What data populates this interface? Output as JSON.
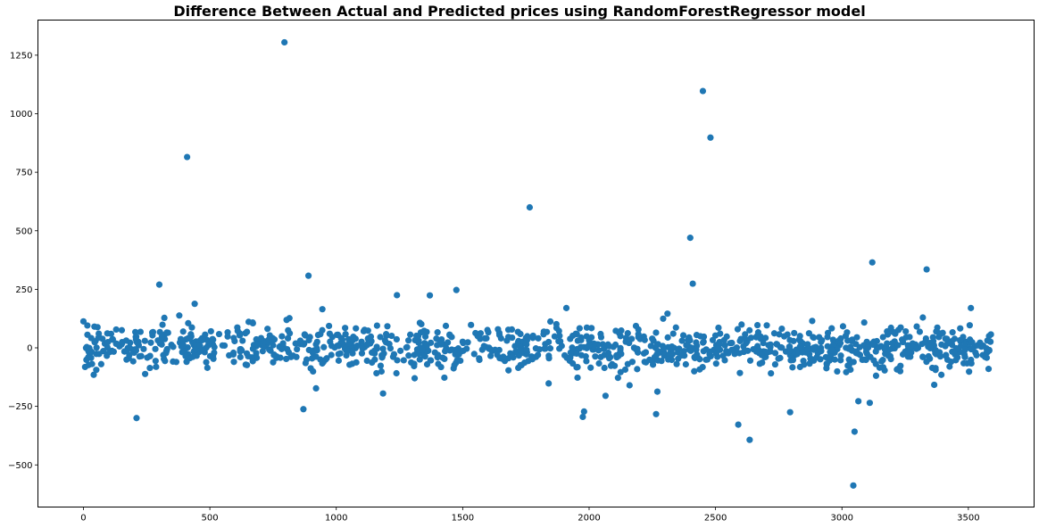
{
  "chart_data": {
    "type": "scatter",
    "title": "Difference Between Actual and Predicted prices using RandomForestRegressor model",
    "xlabel": "",
    "ylabel": "",
    "xlim": [
      -180,
      3760
    ],
    "ylim": [
      -680,
      1400
    ],
    "xticks": [
      0,
      500,
      1000,
      1500,
      2000,
      2500,
      3000,
      3500
    ],
    "yticks": [
      -500,
      -250,
      0,
      250,
      500,
      750,
      1000,
      1250
    ],
    "grid": false,
    "legend": "none",
    "marker_color": "#1f77b4",
    "notable_points": [
      {
        "x": 0,
        "y": 113
      },
      {
        "x": 210,
        "y": -300
      },
      {
        "x": 300,
        "y": 270
      },
      {
        "x": 320,
        "y": 128
      },
      {
        "x": 410,
        "y": 815
      },
      {
        "x": 440,
        "y": 188
      },
      {
        "x": 795,
        "y": 1305
      },
      {
        "x": 870,
        "y": -262
      },
      {
        "x": 890,
        "y": 308
      },
      {
        "x": 920,
        "y": -173
      },
      {
        "x": 945,
        "y": 165
      },
      {
        "x": 1185,
        "y": -195
      },
      {
        "x": 1240,
        "y": 225
      },
      {
        "x": 1310,
        "y": -130
      },
      {
        "x": 1370,
        "y": 224
      },
      {
        "x": 1475,
        "y": 247
      },
      {
        "x": 1765,
        "y": 600
      },
      {
        "x": 1840,
        "y": -152
      },
      {
        "x": 1910,
        "y": 170
      },
      {
        "x": 1975,
        "y": -295
      },
      {
        "x": 1980,
        "y": -272
      },
      {
        "x": 2065,
        "y": -205
      },
      {
        "x": 2160,
        "y": -160
      },
      {
        "x": 2265,
        "y": -283
      },
      {
        "x": 2270,
        "y": -187
      },
      {
        "x": 2310,
        "y": 146
      },
      {
        "x": 2400,
        "y": 470
      },
      {
        "x": 2410,
        "y": 274
      },
      {
        "x": 2450,
        "y": 1097
      },
      {
        "x": 2480,
        "y": 898
      },
      {
        "x": 2590,
        "y": -328
      },
      {
        "x": 2635,
        "y": -393
      },
      {
        "x": 2795,
        "y": -275
      },
      {
        "x": 3045,
        "y": -588
      },
      {
        "x": 3050,
        "y": -358
      },
      {
        "x": 3065,
        "y": -228
      },
      {
        "x": 3110,
        "y": -235
      },
      {
        "x": 3120,
        "y": 365
      },
      {
        "x": 3335,
        "y": 335
      },
      {
        "x": 3365,
        "y": -158
      },
      {
        "x": 3510,
        "y": 170
      },
      {
        "x": 3580,
        "y": -90
      }
    ],
    "bulk": {
      "x_range": [
        0,
        3590
      ],
      "y_center": 0,
      "y_spread": 45,
      "point_count": 1150
    }
  }
}
